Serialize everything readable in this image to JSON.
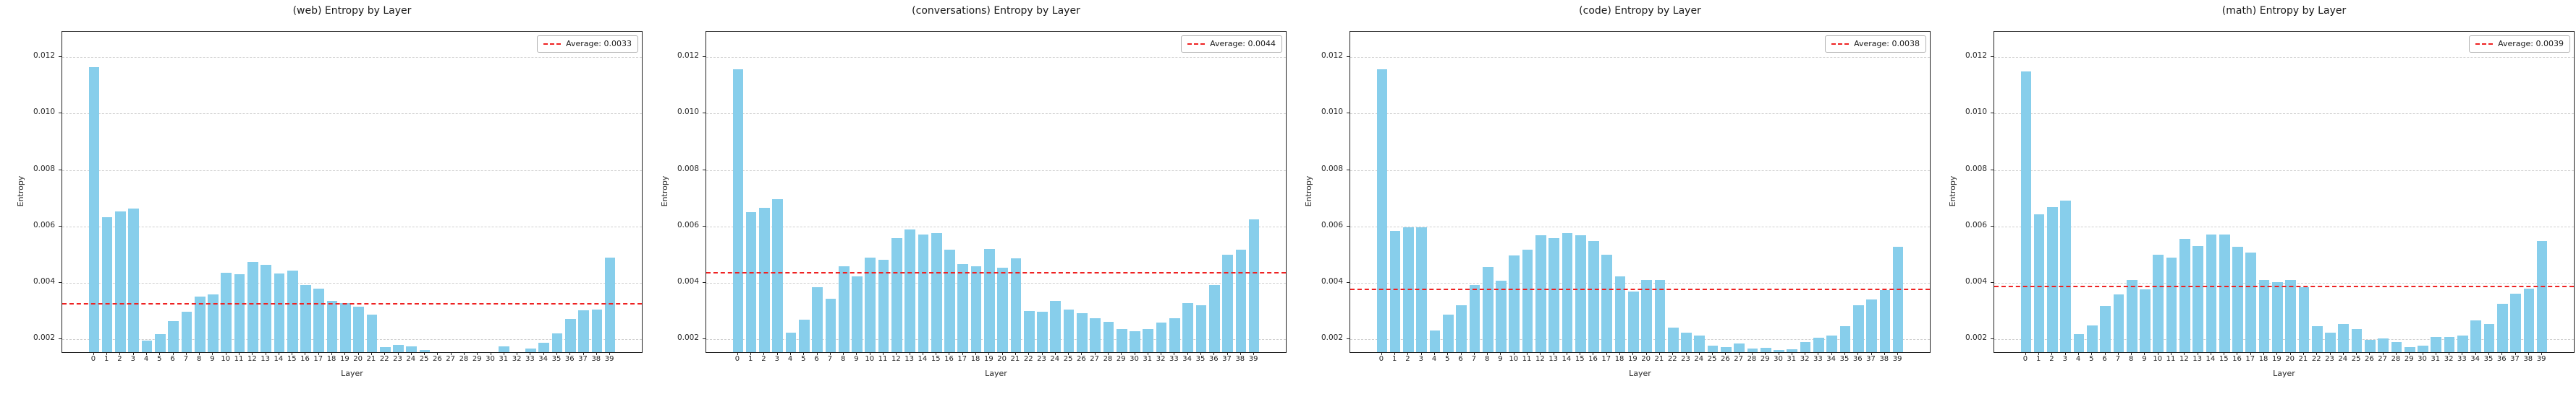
{
  "figure": {
    "background": "#ffffff",
    "bar_color": "#87ceeb",
    "avg_line_color": "#ee2222",
    "grid_color": "#cfcfcf"
  },
  "chart_data": [
    {
      "type": "bar",
      "title": "(web) Entropy by Layer",
      "xlabel": "Layer",
      "ylabel": "Entropy",
      "legend_label": "Average: 0.0033",
      "average": 0.0033,
      "legend_position": "upper right",
      "grid": true,
      "categories": [
        0,
        1,
        2,
        3,
        4,
        5,
        6,
        7,
        8,
        9,
        10,
        11,
        12,
        13,
        14,
        15,
        16,
        17,
        18,
        19,
        20,
        21,
        22,
        23,
        24,
        25,
        26,
        27,
        28,
        29,
        30,
        31,
        32,
        33,
        34,
        35,
        36,
        37,
        38,
        39
      ],
      "values": [
        0.01164,
        0.00634,
        0.00654,
        0.00665,
        0.00197,
        0.00218,
        0.00266,
        0.00297,
        0.00352,
        0.0036,
        0.00437,
        0.00432,
        0.00475,
        0.00465,
        0.00434,
        0.00444,
        0.00392,
        0.00379,
        0.00337,
        0.00329,
        0.00316,
        0.00288,
        0.00174,
        0.00181,
        0.00175,
        0.00163,
        0.0015,
        0.0015,
        0.0015,
        0.0015,
        0.0015,
        0.00175,
        0.0015,
        0.00167,
        0.00188,
        0.00221,
        0.00273,
        0.00303,
        0.00307,
        0.00491
      ],
      "yticks": [
        0.002,
        0.004,
        0.006,
        0.008,
        0.01,
        0.012
      ],
      "ylim": [
        0.00155,
        0.0129
      ],
      "xlim": [
        -2.4,
        41.4
      ]
    },
    {
      "type": "bar",
      "title": "(conversations) Entropy by Layer",
      "xlabel": "Layer",
      "ylabel": "Entropy",
      "legend_label": "Average: 0.0044",
      "average": 0.0044,
      "legend_position": "upper right",
      "grid": true,
      "categories": [
        0,
        1,
        2,
        3,
        4,
        5,
        6,
        7,
        8,
        9,
        10,
        11,
        12,
        13,
        14,
        15,
        16,
        17,
        18,
        19,
        20,
        21,
        22,
        23,
        24,
        25,
        26,
        27,
        28,
        29,
        30,
        31,
        32,
        33,
        34,
        35,
        36,
        37,
        38,
        39
      ],
      "values": [
        0.01158,
        0.0065,
        0.00667,
        0.00698,
        0.00223,
        0.00271,
        0.00385,
        0.00345,
        0.00459,
        0.00423,
        0.00489,
        0.00481,
        0.00558,
        0.0059,
        0.00571,
        0.00578,
        0.00517,
        0.00467,
        0.0046,
        0.0052,
        0.00455,
        0.00487,
        0.00302,
        0.00297,
        0.00337,
        0.00307,
        0.00294,
        0.00274,
        0.00263,
        0.00238,
        0.00228,
        0.00238,
        0.00261,
        0.00276,
        0.0033,
        0.00322,
        0.00393,
        0.005,
        0.00517,
        0.00625
      ],
      "yticks": [
        0.002,
        0.004,
        0.006,
        0.008,
        0.01,
        0.012
      ],
      "ylim": [
        0.00155,
        0.0129
      ],
      "xlim": [
        -2.4,
        41.4
      ]
    },
    {
      "type": "bar",
      "title": "(code) Entropy by Layer",
      "xlabel": "Layer",
      "ylabel": "Entropy",
      "legend_label": "Average: 0.0038",
      "average": 0.0038,
      "legend_position": "upper right",
      "grid": true,
      "categories": [
        0,
        1,
        2,
        3,
        4,
        5,
        6,
        7,
        8,
        9,
        10,
        11,
        12,
        13,
        14,
        15,
        16,
        17,
        18,
        19,
        20,
        21,
        22,
        23,
        24,
        25,
        26,
        27,
        28,
        29,
        30,
        31,
        32,
        33,
        34,
        35,
        36,
        37,
        38,
        39
      ],
      "values": [
        0.01157,
        0.00585,
        0.00598,
        0.00598,
        0.00233,
        0.00288,
        0.00322,
        0.00394,
        0.00456,
        0.00409,
        0.00498,
        0.00519,
        0.0057,
        0.0056,
        0.00578,
        0.00569,
        0.00548,
        0.00501,
        0.00424,
        0.00371,
        0.00411,
        0.00411,
        0.00242,
        0.00223,
        0.00215,
        0.00177,
        0.00172,
        0.00185,
        0.00167,
        0.0017,
        0.00162,
        0.00164,
        0.0019,
        0.00205,
        0.00215,
        0.00246,
        0.0032,
        0.00342,
        0.00375,
        0.00528
      ],
      "yticks": [
        0.002,
        0.004,
        0.006,
        0.008,
        0.01,
        0.012
      ],
      "ylim": [
        0.00155,
        0.0129
      ],
      "xlim": [
        -2.4,
        41.4
      ]
    },
    {
      "type": "bar",
      "title": "(math) Entropy by Layer",
      "xlabel": "Layer",
      "ylabel": "Entropy",
      "legend_label": "Average: 0.0039",
      "average": 0.0039,
      "legend_position": "upper right",
      "grid": true,
      "categories": [
        0,
        1,
        2,
        3,
        4,
        5,
        6,
        7,
        8,
        9,
        10,
        11,
        12,
        13,
        14,
        15,
        16,
        17,
        18,
        19,
        20,
        21,
        22,
        23,
        24,
        25,
        26,
        27,
        28,
        29,
        30,
        31,
        32,
        33,
        34,
        35,
        36,
        37,
        38,
        39
      ],
      "values": [
        0.0115,
        0.00644,
        0.00669,
        0.00691,
        0.0022,
        0.0025,
        0.00318,
        0.0036,
        0.00411,
        0.00377,
        0.005,
        0.00489,
        0.00557,
        0.0053,
        0.00572,
        0.00572,
        0.00527,
        0.00507,
        0.00411,
        0.00402,
        0.00411,
        0.00385,
        0.00246,
        0.00225,
        0.00255,
        0.00237,
        0.00199,
        0.00204,
        0.00191,
        0.00174,
        0.00179,
        0.00209,
        0.00208,
        0.00215,
        0.00267,
        0.00256,
        0.00327,
        0.00361,
        0.00379,
        0.00548
      ],
      "yticks": [
        0.002,
        0.004,
        0.006,
        0.008,
        0.01,
        0.012
      ],
      "ylim": [
        0.00155,
        0.0129
      ],
      "xlim": [
        -2.4,
        41.4
      ]
    }
  ]
}
